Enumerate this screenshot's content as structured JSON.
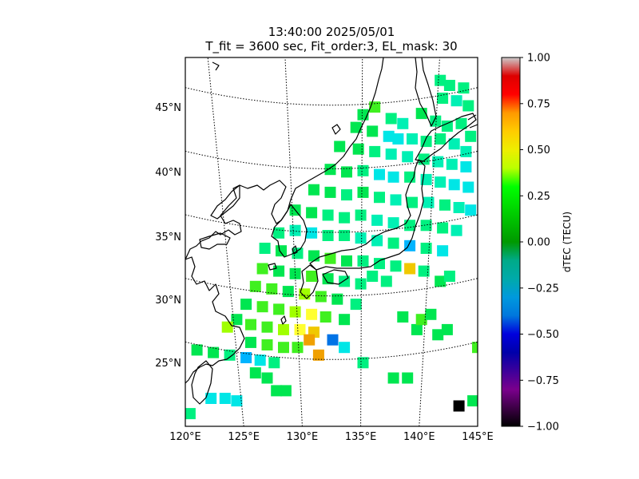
{
  "header": {
    "title_line1": "13:40:00 2025/05/01",
    "title_line2": "T_fit = 3600 sec, Fit_order:3, EL_mask: 30"
  },
  "map": {
    "extent": {
      "lon": [
        120,
        145
      ],
      "lat": [
        20,
        49
      ]
    },
    "lon_ticks": [
      {
        "value": 120,
        "label": "120°E"
      },
      {
        "value": 125,
        "label": "125°E"
      },
      {
        "value": 130,
        "label": "130°E"
      },
      {
        "value": 135,
        "label": "135°E"
      },
      {
        "value": 140,
        "label": "140°E"
      },
      {
        "value": 145,
        "label": "145°E"
      }
    ],
    "lat_ticks": [
      {
        "value": 25,
        "label": "25°N"
      },
      {
        "value": 30,
        "label": "30°N"
      },
      {
        "value": 35,
        "label": "35°N"
      },
      {
        "value": 40,
        "label": "40°N"
      },
      {
        "value": 45,
        "label": "45°N"
      }
    ],
    "gridlines": "dotted"
  },
  "colorbar": {
    "label": "dTEC (TECU)",
    "range": [
      -1.0,
      1.0
    ],
    "colormap": "nipy_spectral",
    "ticks": [
      {
        "value": -1.0,
        "label": "−1.00"
      },
      {
        "value": -0.75,
        "label": "−0.75"
      },
      {
        "value": -0.5,
        "label": "−0.50"
      },
      {
        "value": -0.25,
        "label": "−0.25"
      },
      {
        "value": 0.0,
        "label": "0.00"
      },
      {
        "value": 0.25,
        "label": "0.25"
      },
      {
        "value": 0.5,
        "label": "0.50"
      },
      {
        "value": 0.75,
        "label": "0.75"
      },
      {
        "value": 1.0,
        "label": "1.00"
      }
    ]
  },
  "chart_data": {
    "type": "heatmap",
    "title": "13:40:00 2025/05/01 — T_fit = 3600 sec, Fit_order:3, EL_mask: 30",
    "colorbar_label": "dTEC (TECU)",
    "vmin": -1.0,
    "vmax": 1.0,
    "points": [
      {
        "lon": 141.8,
        "lat": 47.2,
        "v": 0.12
      },
      {
        "lon": 142.6,
        "lat": 46.8,
        "v": 0.1
      },
      {
        "lon": 143.8,
        "lat": 46.6,
        "v": 0.08
      },
      {
        "lon": 142.0,
        "lat": 45.8,
        "v": 0.05
      },
      {
        "lon": 143.2,
        "lat": 45.6,
        "v": 0.02
      },
      {
        "lon": 144.2,
        "lat": 45.2,
        "v": 0.06
      },
      {
        "lon": 136.2,
        "lat": 45.1,
        "v": 0.25
      },
      {
        "lon": 135.2,
        "lat": 44.5,
        "v": 0.22
      },
      {
        "lon": 137.6,
        "lat": 44.2,
        "v": 0.05
      },
      {
        "lon": 138.6,
        "lat": 43.8,
        "v": -0.05
      },
      {
        "lon": 140.2,
        "lat": 44.6,
        "v": 0.15
      },
      {
        "lon": 141.4,
        "lat": 44.0,
        "v": 0.1
      },
      {
        "lon": 142.4,
        "lat": 43.6,
        "v": 0.05
      },
      {
        "lon": 143.6,
        "lat": 43.8,
        "v": 0.1
      },
      {
        "lon": 144.4,
        "lat": 42.8,
        "v": 0.05
      },
      {
        "lon": 134.6,
        "lat": 43.5,
        "v": 0.22
      },
      {
        "lon": 136.0,
        "lat": 43.2,
        "v": 0.2
      },
      {
        "lon": 137.4,
        "lat": 42.8,
        "v": -0.12
      },
      {
        "lon": 138.2,
        "lat": 42.6,
        "v": -0.18
      },
      {
        "lon": 139.4,
        "lat": 42.6,
        "v": 0.0
      },
      {
        "lon": 140.6,
        "lat": 42.4,
        "v": 0.05
      },
      {
        "lon": 141.8,
        "lat": 42.6,
        "v": 0.1
      },
      {
        "lon": 143.0,
        "lat": 42.2,
        "v": 0.02
      },
      {
        "lon": 144.0,
        "lat": 41.6,
        "v": 0.0
      },
      {
        "lon": 133.2,
        "lat": 42.0,
        "v": 0.2
      },
      {
        "lon": 134.8,
        "lat": 41.8,
        "v": 0.18
      },
      {
        "lon": 136.2,
        "lat": 41.6,
        "v": 0.1
      },
      {
        "lon": 137.6,
        "lat": 41.4,
        "v": 0.0
      },
      {
        "lon": 139.0,
        "lat": 41.2,
        "v": -0.05
      },
      {
        "lon": 140.4,
        "lat": 41.0,
        "v": 0.05
      },
      {
        "lon": 141.6,
        "lat": 40.8,
        "v": 0.0
      },
      {
        "lon": 142.8,
        "lat": 40.6,
        "v": -0.05
      },
      {
        "lon": 144.0,
        "lat": 40.4,
        "v": -0.1
      },
      {
        "lon": 132.4,
        "lat": 40.2,
        "v": 0.22
      },
      {
        "lon": 133.8,
        "lat": 40.0,
        "v": 0.15
      },
      {
        "lon": 135.2,
        "lat": 40.1,
        "v": 0.1
      },
      {
        "lon": 136.6,
        "lat": 39.8,
        "v": -0.2
      },
      {
        "lon": 137.8,
        "lat": 39.6,
        "v": -0.15
      },
      {
        "lon": 139.2,
        "lat": 39.6,
        "v": 0.05
      },
      {
        "lon": 140.6,
        "lat": 39.4,
        "v": 0.02
      },
      {
        "lon": 141.8,
        "lat": 39.2,
        "v": -0.08
      },
      {
        "lon": 143.0,
        "lat": 39.0,
        "v": -0.15
      },
      {
        "lon": 144.2,
        "lat": 38.8,
        "v": -0.2
      },
      {
        "lon": 131.0,
        "lat": 38.6,
        "v": 0.2
      },
      {
        "lon": 132.4,
        "lat": 38.4,
        "v": 0.18
      },
      {
        "lon": 133.8,
        "lat": 38.2,
        "v": 0.12
      },
      {
        "lon": 135.2,
        "lat": 38.4,
        "v": 0.15
      },
      {
        "lon": 136.6,
        "lat": 38.0,
        "v": 0.1
      },
      {
        "lon": 138.0,
        "lat": 37.8,
        "v": 0.0
      },
      {
        "lon": 139.4,
        "lat": 37.6,
        "v": 0.05
      },
      {
        "lon": 140.8,
        "lat": 37.6,
        "v": 0.0
      },
      {
        "lon": 142.2,
        "lat": 37.4,
        "v": 0.05
      },
      {
        "lon": 143.4,
        "lat": 37.2,
        "v": -0.05
      },
      {
        "lon": 144.4,
        "lat": 37.0,
        "v": -0.15
      },
      {
        "lon": 129.4,
        "lat": 37.0,
        "v": 0.15
      },
      {
        "lon": 130.8,
        "lat": 36.8,
        "v": 0.2
      },
      {
        "lon": 132.2,
        "lat": 36.6,
        "v": 0.12
      },
      {
        "lon": 133.6,
        "lat": 36.4,
        "v": 0.1
      },
      {
        "lon": 135.0,
        "lat": 36.6,
        "v": 0.05
      },
      {
        "lon": 136.4,
        "lat": 36.2,
        "v": 0.02
      },
      {
        "lon": 137.8,
        "lat": 36.0,
        "v": 0.0
      },
      {
        "lon": 139.2,
        "lat": 35.8,
        "v": 0.05
      },
      {
        "lon": 140.6,
        "lat": 35.8,
        "v": 0.1
      },
      {
        "lon": 142.0,
        "lat": 35.6,
        "v": 0.05
      },
      {
        "lon": 143.2,
        "lat": 35.4,
        "v": 0.0
      },
      {
        "lon": 128.0,
        "lat": 35.2,
        "v": 0.05
      },
      {
        "lon": 129.4,
        "lat": 35.4,
        "v": 0.0
      },
      {
        "lon": 130.8,
        "lat": 35.2,
        "v": -0.2
      },
      {
        "lon": 132.2,
        "lat": 35.0,
        "v": 0.1
      },
      {
        "lon": 133.6,
        "lat": 35.0,
        "v": 0.05
      },
      {
        "lon": 135.0,
        "lat": 34.8,
        "v": 0.02
      },
      {
        "lon": 136.4,
        "lat": 34.6,
        "v": 0.0
      },
      {
        "lon": 137.8,
        "lat": 34.4,
        "v": 0.05
      },
      {
        "lon": 139.2,
        "lat": 34.2,
        "v": -0.3
      },
      {
        "lon": 140.6,
        "lat": 34.0,
        "v": 0.1
      },
      {
        "lon": 142.0,
        "lat": 33.8,
        "v": -0.2
      },
      {
        "lon": 126.8,
        "lat": 34.0,
        "v": 0.1
      },
      {
        "lon": 128.2,
        "lat": 33.8,
        "v": 0.15
      },
      {
        "lon": 129.6,
        "lat": 33.6,
        "v": 0.05
      },
      {
        "lon": 131.0,
        "lat": 33.4,
        "v": 0.2
      },
      {
        "lon": 132.4,
        "lat": 33.2,
        "v": 0.25
      },
      {
        "lon": 133.8,
        "lat": 33.0,
        "v": 0.15
      },
      {
        "lon": 135.2,
        "lat": 33.0,
        "v": 0.1
      },
      {
        "lon": 136.6,
        "lat": 32.8,
        "v": 0.05
      },
      {
        "lon": 138.0,
        "lat": 32.6,
        "v": 0.1
      },
      {
        "lon": 139.2,
        "lat": 32.4,
        "v": 0.55
      },
      {
        "lon": 140.4,
        "lat": 32.2,
        "v": 0.1
      },
      {
        "lon": 126.6,
        "lat": 32.4,
        "v": 0.25
      },
      {
        "lon": 128.0,
        "lat": 32.2,
        "v": 0.2
      },
      {
        "lon": 129.4,
        "lat": 32.0,
        "v": 0.15
      },
      {
        "lon": 130.8,
        "lat": 31.8,
        "v": 0.3
      },
      {
        "lon": 132.2,
        "lat": 31.6,
        "v": 0.2
      },
      {
        "lon": 133.6,
        "lat": 31.4,
        "v": 0.1
      },
      {
        "lon": 135.0,
        "lat": 31.2,
        "v": 0.05
      },
      {
        "lon": 141.8,
        "lat": 31.4,
        "v": 0.15
      },
      {
        "lon": 142.6,
        "lat": 31.8,
        "v": 0.1
      },
      {
        "lon": 126.0,
        "lat": 31.0,
        "v": 0.3
      },
      {
        "lon": 127.4,
        "lat": 30.8,
        "v": 0.25
      },
      {
        "lon": 128.8,
        "lat": 30.6,
        "v": 0.2
      },
      {
        "lon": 130.2,
        "lat": 30.4,
        "v": 0.35
      },
      {
        "lon": 131.6,
        "lat": 30.2,
        "v": 0.25
      },
      {
        "lon": 133.0,
        "lat": 30.0,
        "v": 0.15
      },
      {
        "lon": 134.6,
        "lat": 29.6,
        "v": 0.1
      },
      {
        "lon": 125.2,
        "lat": 29.6,
        "v": 0.2
      },
      {
        "lon": 126.6,
        "lat": 29.4,
        "v": 0.25
      },
      {
        "lon": 128.0,
        "lat": 29.2,
        "v": 0.3
      },
      {
        "lon": 129.4,
        "lat": 29.0,
        "v": 0.4
      },
      {
        "lon": 130.8,
        "lat": 28.8,
        "v": 0.5
      },
      {
        "lon": 132.0,
        "lat": 28.6,
        "v": 0.3
      },
      {
        "lon": 133.6,
        "lat": 28.4,
        "v": 0.2
      },
      {
        "lon": 124.4,
        "lat": 28.4,
        "v": 0.2
      },
      {
        "lon": 123.6,
        "lat": 27.8,
        "v": 0.35
      },
      {
        "lon": 125.6,
        "lat": 28.0,
        "v": 0.25
      },
      {
        "lon": 127.0,
        "lat": 27.8,
        "v": 0.3
      },
      {
        "lon": 128.4,
        "lat": 27.6,
        "v": 0.35
      },
      {
        "lon": 129.8,
        "lat": 27.6,
        "v": 0.45
      },
      {
        "lon": 131.0,
        "lat": 27.4,
        "v": 0.55
      },
      {
        "lon": 130.6,
        "lat": 26.8,
        "v": 0.6
      },
      {
        "lon": 132.6,
        "lat": 26.8,
        "v": -0.4
      },
      {
        "lon": 133.6,
        "lat": 26.2,
        "v": -0.2
      },
      {
        "lon": 131.4,
        "lat": 25.6,
        "v": 0.65
      },
      {
        "lon": 125.6,
        "lat": 26.6,
        "v": 0.2
      },
      {
        "lon": 127.0,
        "lat": 26.4,
        "v": 0.25
      },
      {
        "lon": 128.4,
        "lat": 26.2,
        "v": 0.3
      },
      {
        "lon": 129.6,
        "lat": 26.2,
        "v": 0.3
      },
      {
        "lon": 121.0,
        "lat": 26.0,
        "v": 0.2
      },
      {
        "lon": 122.4,
        "lat": 25.8,
        "v": 0.15
      },
      {
        "lon": 123.8,
        "lat": 25.6,
        "v": 0.05
      },
      {
        "lon": 125.2,
        "lat": 25.4,
        "v": -0.3
      },
      {
        "lon": 126.4,
        "lat": 25.2,
        "v": -0.15
      },
      {
        "lon": 127.6,
        "lat": 25.0,
        "v": 0.1
      },
      {
        "lon": 126.0,
        "lat": 24.2,
        "v": 0.15
      },
      {
        "lon": 127.0,
        "lat": 23.8,
        "v": 0.2
      },
      {
        "lon": 135.2,
        "lat": 25.0,
        "v": 0.05
      },
      {
        "lon": 137.8,
        "lat": 23.8,
        "v": 0.2
      },
      {
        "lon": 139.0,
        "lat": 23.8,
        "v": 0.2
      },
      {
        "lon": 127.8,
        "lat": 22.8,
        "v": 0.2
      },
      {
        "lon": 128.6,
        "lat": 22.8,
        "v": 0.2
      },
      {
        "lon": 122.2,
        "lat": 22.2,
        "v": -0.15
      },
      {
        "lon": 123.4,
        "lat": 22.2,
        "v": -0.1
      },
      {
        "lon": 124.4,
        "lat": 22.0,
        "v": -0.2
      },
      {
        "lon": 120.4,
        "lat": 21.0,
        "v": 0.1
      },
      {
        "lon": 144.6,
        "lat": 22.0,
        "v": 0.15
      },
      {
        "lon": 143.4,
        "lat": 21.6,
        "v": -1.0
      },
      {
        "lon": 139.8,
        "lat": 27.6,
        "v": 0.2
      },
      {
        "lon": 141.6,
        "lat": 27.2,
        "v": 0.15
      },
      {
        "lon": 142.4,
        "lat": 27.6,
        "v": 0.2
      },
      {
        "lon": 140.2,
        "lat": 28.4,
        "v": 0.25
      },
      {
        "lon": 138.6,
        "lat": 28.6,
        "v": 0.15
      },
      {
        "lon": 141.0,
        "lat": 28.8,
        "v": 0.2
      },
      {
        "lon": 145.0,
        "lat": 26.2,
        "v": 0.25
      },
      {
        "lon": 136.0,
        "lat": 31.8,
        "v": 0.1
      },
      {
        "lon": 137.2,
        "lat": 31.4,
        "v": 0.05
      }
    ]
  }
}
